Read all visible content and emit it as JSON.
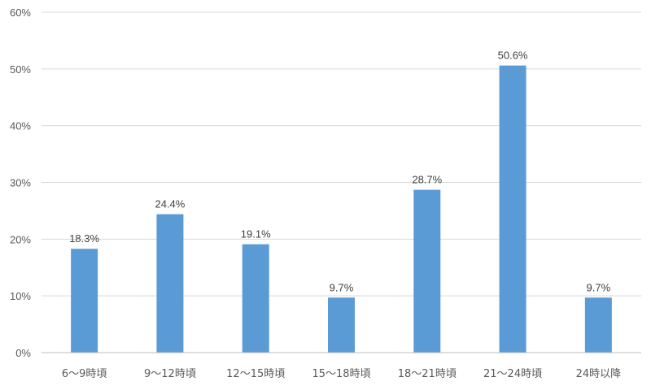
{
  "chart_data": {
    "type": "bar",
    "categories": [
      "6〜9時頃",
      "9〜12時頃",
      "12〜15時頃",
      "15〜18時頃",
      "18〜21時頃",
      "21〜24時頃",
      "24時以降"
    ],
    "values": [
      18.3,
      24.4,
      19.1,
      9.7,
      28.7,
      50.6,
      9.7
    ],
    "data_labels": [
      "18.3%",
      "24.4%",
      "19.1%",
      "9.7%",
      "28.7%",
      "50.6%",
      "9.7%"
    ],
    "y_ticks": [
      "0%",
      "10%",
      "20%",
      "30%",
      "40%",
      "50%",
      "60%"
    ],
    "y_tick_values": [
      0,
      10,
      20,
      30,
      40,
      50,
      60
    ],
    "ylim": [
      0,
      60
    ],
    "grid": true,
    "legend": "none",
    "bar_color": "#5b9bd5"
  }
}
